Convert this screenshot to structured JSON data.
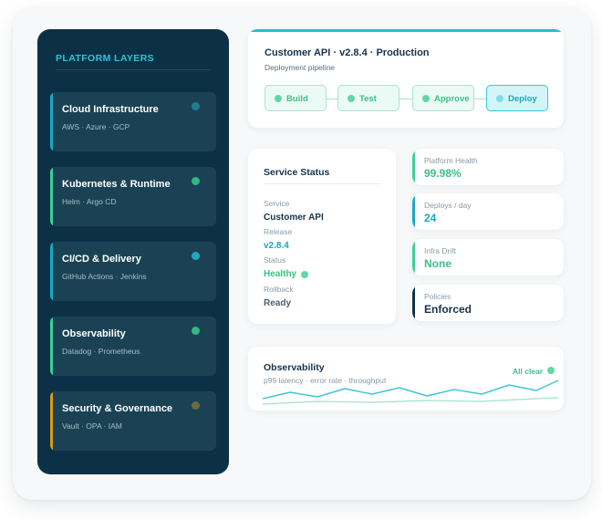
{
  "sidebar": {
    "title": "PLATFORM LAYERS",
    "layers": [
      {
        "name": "Cloud Infrastructure",
        "sub": "AWS · Azure · GCP",
        "accent": "#1ea7c4",
        "dot": "#1f7c97"
      },
      {
        "name": "Kubernetes & Runtime",
        "sub": "Helm · Argo CD",
        "accent": "#3ecf95",
        "dot": "#35b785"
      },
      {
        "name": "CI/CD & Delivery",
        "sub": "GitHub Actions · Jenkins",
        "accent": "#1ea7c4",
        "dot": "#22a6c1"
      },
      {
        "name": "Observability",
        "sub": "Datadog · Prometheus",
        "accent": "#3ecf95",
        "dot": "#35b785"
      },
      {
        "name": "Security & Governance",
        "sub": "Vault · OPA · IAM",
        "accent": "#d89a16",
        "dot": "#6d6a3e"
      }
    ]
  },
  "pipeline": {
    "title": "Customer API · v2.8.4 · Production",
    "subtitle": "Deployment pipeline",
    "stages": [
      {
        "label": "Build",
        "active": false
      },
      {
        "label": "Test",
        "active": false
      },
      {
        "label": "Approve",
        "active": false
      },
      {
        "label": "Deploy",
        "active": true
      }
    ]
  },
  "service_status": {
    "title": "Service Status",
    "fields": [
      {
        "label": "Service",
        "value": "Customer API",
        "color": "#17324a"
      },
      {
        "label": "Release",
        "value": "v2.8.4",
        "color": "#1aa9ba"
      },
      {
        "label": "Status",
        "value": "Healthy",
        "color": "#3dbf86"
      },
      {
        "label": "Rollback",
        "value": "Ready",
        "color": "#4c5f6e"
      }
    ]
  },
  "metrics": [
    {
      "label": "Platform Health",
      "value": "99.98%",
      "accent": "#3ecf95",
      "value_color": "#3dbf86"
    },
    {
      "label": "Deploys / day",
      "value": "24",
      "accent": "#1ea7c4",
      "value_color": "#1aa9ba"
    },
    {
      "label": "Infra Drift",
      "value": "None",
      "accent": "#3ecf95",
      "value_color": "#3dbf86"
    },
    {
      "label": "Policies",
      "value": "Enforced",
      "accent": "#0c3147",
      "value_color": "#17324a"
    }
  ],
  "observability": {
    "title": "Observability",
    "subtitle": "p99 latency · error rate · throughput",
    "status": "All clear",
    "line_color": "#43c5d6",
    "baseline_color": "#9fe3c7"
  }
}
